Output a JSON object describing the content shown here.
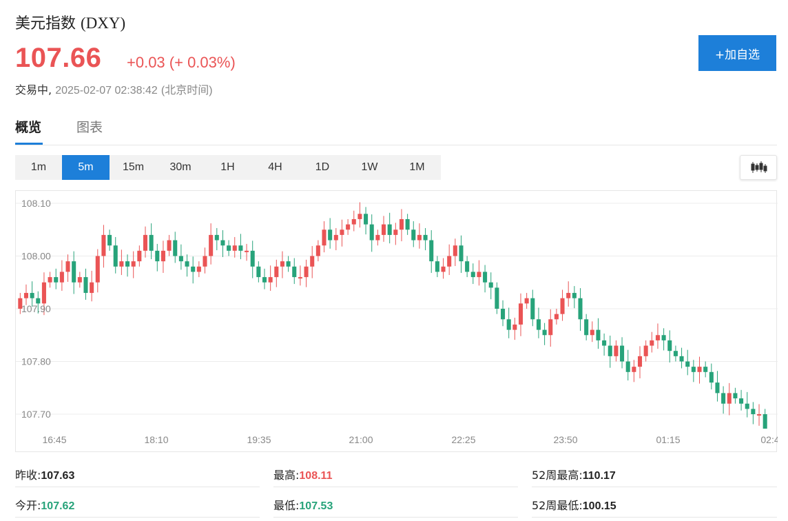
{
  "header": {
    "title_cn": "美元指数",
    "title_code": "(DXY)",
    "price": "107.66",
    "change": "+0.03 (+ 0.03%)",
    "status": "交易中,",
    "timestamp": "2025-02-07 02:38:42",
    "timezone": "(北京时间)",
    "add_button": "+加自选"
  },
  "tabs": [
    {
      "label": "概览",
      "active": true
    },
    {
      "label": "图表",
      "active": false
    }
  ],
  "periods": [
    "1m",
    "5m",
    "15m",
    "30m",
    "1H",
    "4H",
    "1D",
    "1W",
    "1M"
  ],
  "active_period": "5m",
  "icons": {
    "chart_type": "candlestick-icon"
  },
  "colors": {
    "up": "#ea5455",
    "down": "#27a37a",
    "accent": "#1d7fd9"
  },
  "chart_data": {
    "type": "candlestick",
    "ylim": [
      107.66,
      108.12
    ],
    "yticks": [
      "108.10",
      "108.00",
      "107.90",
      "107.80",
      "107.70"
    ],
    "xticks": [
      "16:45",
      "18:10",
      "19:35",
      "21:00",
      "22:25",
      "23:50",
      "01:15",
      "02:4"
    ],
    "closes": [
      107.92,
      107.93,
      107.92,
      107.91,
      107.95,
      107.96,
      107.95,
      107.97,
      107.99,
      107.95,
      107.96,
      107.93,
      107.95,
      108.0,
      108.04,
      108.02,
      107.98,
      107.99,
      107.98,
      107.99,
      108.01,
      108.04,
      108.01,
      107.99,
      108.01,
      108.03,
      108.0,
      107.99,
      107.98,
      107.97,
      107.98,
      108.0,
      108.04,
      108.03,
      108.02,
      108.01,
      108.02,
      108.01,
      108.01,
      107.98,
      107.96,
      107.95,
      107.96,
      107.98,
      107.99,
      107.98,
      107.96,
      107.96,
      107.98,
      108.0,
      108.02,
      108.05,
      108.03,
      108.04,
      108.05,
      108.06,
      108.07,
      108.08,
      108.06,
      108.03,
      108.04,
      108.06,
      108.04,
      108.05,
      108.07,
      108.05,
      108.03,
      108.04,
      108.03,
      107.99,
      107.97,
      107.98,
      108.0,
      108.02,
      107.99,
      107.97,
      107.96,
      107.97,
      107.95,
      107.94,
      107.9,
      107.88,
      107.86,
      107.87,
      107.91,
      107.92,
      107.88,
      107.86,
      107.85,
      107.88,
      107.89,
      107.92,
      107.93,
      107.92,
      107.88,
      107.85,
      107.86,
      107.84,
      107.83,
      107.81,
      107.83,
      107.8,
      107.78,
      107.79,
      107.81,
      107.83,
      107.84,
      107.85,
      107.84,
      107.82,
      107.81,
      107.8,
      107.79,
      107.78,
      107.79,
      107.78,
      107.76,
      107.74,
      107.72,
      107.74,
      107.73,
      107.72,
      107.71,
      107.7,
      107.7,
      107.66
    ]
  },
  "stats": [
    {
      "label": "昨收:",
      "value": "107.63",
      "tone": "dark"
    },
    {
      "label": "最高:",
      "value": "108.11",
      "tone": "up"
    },
    {
      "label": "52周最高:",
      "value": "110.17",
      "tone": "dark"
    },
    {
      "label": "今开:",
      "value": "107.62",
      "tone": "down"
    },
    {
      "label": "最低:",
      "value": "107.53",
      "tone": "down"
    },
    {
      "label": "52周最低:",
      "value": "100.15",
      "tone": "dark"
    }
  ]
}
